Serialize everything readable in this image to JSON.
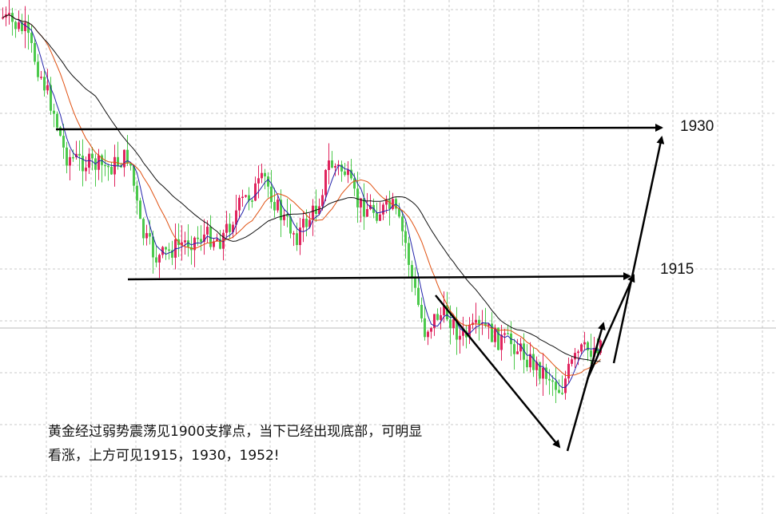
{
  "chart_data": {
    "type": "candlestick",
    "colors": {
      "up": "#e0245e",
      "down": "#4cc94c",
      "ma_short": "#2222aa",
      "ma_mid": "#e05010",
      "ma_long": "#111111",
      "arrows": "#000000",
      "grid": "#c8c8c8"
    },
    "grid": true,
    "levels": [
      {
        "label": "1930",
        "value": 1930
      },
      {
        "label": "1915",
        "value": 1915
      }
    ],
    "annotation": [
      "黄金经过弱势震荡见1900支撑点，当下已经出现底部，可明显",
      "看涨，上方可见1915，1930，1952!"
    ]
  }
}
